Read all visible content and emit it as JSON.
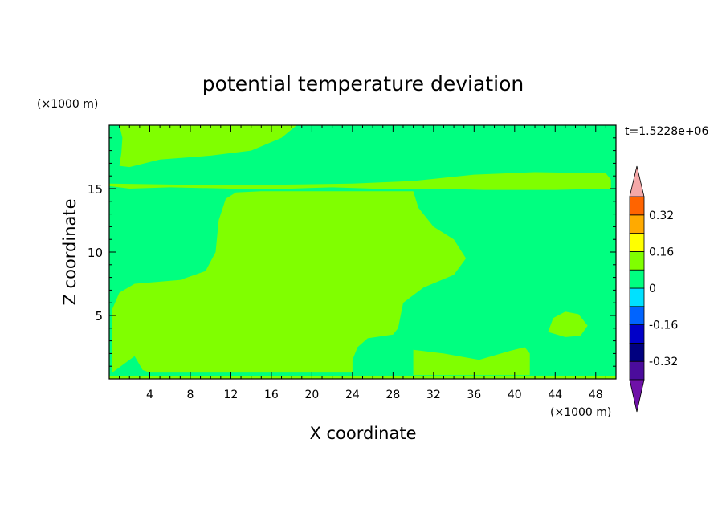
{
  "chart_data": {
    "type": "contour",
    "title": "potential temperature deviation",
    "xlabel": "X coordinate",
    "ylabel": "Z coordinate",
    "x_unit": "(×1000 m)",
    "y_unit": "(×1000 m)",
    "time_label": "t=1.5228e+06",
    "xlim": [
      0,
      50
    ],
    "ylim": [
      0,
      20
    ],
    "x_ticks": [
      4,
      8,
      12,
      16,
      20,
      24,
      28,
      32,
      36,
      40,
      44,
      48
    ],
    "y_ticks": [
      5,
      10,
      15
    ],
    "colorbar": {
      "levels": [
        -0.4,
        -0.32,
        -0.24,
        -0.16,
        -0.08,
        0,
        0.08,
        0.16,
        0.24,
        0.32,
        0.4
      ],
      "colors": [
        "#4b0c9c",
        "#00007f",
        "#0000c8",
        "#0064ff",
        "#00e1ff",
        "#00ff80",
        "#80ff00",
        "#ffff00",
        "#ffaa00",
        "#ff6400",
        "#ff0000"
      ],
      "under_color": "#6f11a8",
      "over_color": "#f4a8a8",
      "labels": [
        "0.32",
        "0.16",
        "0",
        "-0.16",
        "-0.32"
      ],
      "label_values": [
        0.32,
        0.16,
        0,
        -0.16,
        -0.32
      ]
    },
    "regions": [
      {
        "name": "positive-region-top",
        "color": "#80ff00",
        "polygon": [
          [
            1,
            20
          ],
          [
            18.5,
            20
          ],
          [
            17,
            19
          ],
          [
            14,
            18
          ],
          [
            10,
            17.6
          ],
          [
            5,
            17.3
          ],
          [
            2,
            16.7
          ],
          [
            1,
            16.8
          ],
          [
            1.2,
            17.8
          ],
          [
            1.3,
            19
          ]
        ]
      },
      {
        "name": "positive-band-15km",
        "color": "#80ff00",
        "polygon": [
          [
            0,
            15.4
          ],
          [
            8,
            15.3
          ],
          [
            16,
            15.3
          ],
          [
            24,
            15.4
          ],
          [
            30,
            15.6
          ],
          [
            36,
            16.1
          ],
          [
            42,
            16.3
          ],
          [
            49,
            16.2
          ],
          [
            49.5,
            15.7
          ],
          [
            49.5,
            15.0
          ],
          [
            44,
            14.9
          ],
          [
            37,
            14.9
          ],
          [
            32,
            15.0
          ],
          [
            26,
            15.0
          ],
          [
            22,
            15.1
          ],
          [
            18,
            15.0
          ],
          [
            12,
            15.0
          ],
          [
            6,
            15.1
          ],
          [
            2,
            15.0
          ],
          [
            0,
            15.2
          ]
        ]
      },
      {
        "name": "positive-region-main",
        "color": "#80ff00",
        "polygon": [
          [
            0.3,
            0.5
          ],
          [
            0.3,
            5.5
          ],
          [
            1,
            6.8
          ],
          [
            2.5,
            7.5
          ],
          [
            7,
            7.8
          ],
          [
            9.5,
            8.5
          ],
          [
            10.5,
            10
          ],
          [
            10.8,
            12.5
          ],
          [
            11.5,
            14.2
          ],
          [
            12.5,
            14.7
          ],
          [
            15,
            14.8
          ],
          [
            22,
            14.8
          ],
          [
            30,
            14.8
          ],
          [
            30.5,
            13.5
          ],
          [
            32,
            12
          ],
          [
            34,
            11
          ],
          [
            35.2,
            9.5
          ],
          [
            34,
            8.2
          ],
          [
            31,
            7.2
          ],
          [
            29,
            6
          ],
          [
            28.5,
            4
          ],
          [
            28,
            3.5
          ],
          [
            25.5,
            3.2
          ],
          [
            24.5,
            2.5
          ],
          [
            24,
            1.5
          ],
          [
            24,
            0.5
          ],
          [
            13,
            0.5
          ],
          [
            10.5,
            0.5
          ],
          [
            4,
            0.5
          ],
          [
            3.3,
            0.7
          ],
          [
            2.5,
            1.8
          ]
        ]
      },
      {
        "name": "positive-region-bottom-right",
        "color": "#80ff00",
        "polygon": [
          [
            30,
            0.3
          ],
          [
            30,
            2.3
          ],
          [
            33,
            2.0
          ],
          [
            36.5,
            1.5
          ],
          [
            39.5,
            2.2
          ],
          [
            41,
            2.5
          ],
          [
            41.5,
            2.0
          ],
          [
            41.5,
            0.3
          ]
        ]
      },
      {
        "name": "positive-blob-44km",
        "color": "#80ff00",
        "polygon": [
          [
            43.3,
            3.7
          ],
          [
            43.8,
            4.8
          ],
          [
            45,
            5.3
          ],
          [
            46.3,
            5.1
          ],
          [
            47.2,
            4.2
          ],
          [
            46.5,
            3.4
          ],
          [
            45,
            3.3
          ]
        ]
      },
      {
        "name": "positive-sliver-bottom",
        "color": "#80ff00",
        "polygon": [
          [
            0,
            0
          ],
          [
            50,
            0
          ],
          [
            50,
            0.25
          ],
          [
            0,
            0.25
          ]
        ]
      }
    ]
  }
}
